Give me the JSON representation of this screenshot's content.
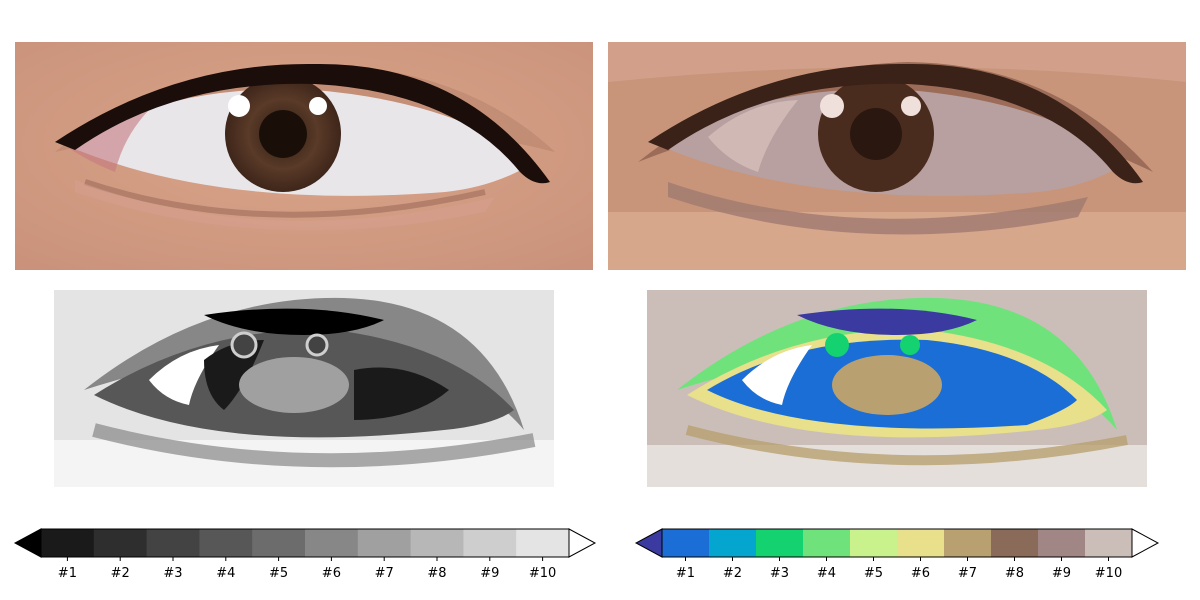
{
  "panels": {
    "original": {
      "icon": "eye-photo-original"
    },
    "quantized": {
      "icon": "eye-photo-quantized"
    },
    "grayscale_segmentation": {
      "icon": "eye-gray-segmentation"
    },
    "color_segmentation": {
      "icon": "eye-color-segmentation"
    }
  },
  "colorbar_gray": {
    "labels": [
      "#1",
      "#2",
      "#3",
      "#4",
      "#5",
      "#6",
      "#7",
      "#8",
      "#9",
      "#10"
    ],
    "colors": [
      "#1a1a1a",
      "#2e2e2e",
      "#434343",
      "#575757",
      "#6c6c6c",
      "#878787",
      "#a0a0a0",
      "#b7b7b7",
      "#cecece",
      "#e4e4e4"
    ],
    "under_color": "#000000",
    "over_color": "#ffffff"
  },
  "colorbar_color": {
    "labels": [
      "#1",
      "#2",
      "#3",
      "#4",
      "#5",
      "#6",
      "#7",
      "#8",
      "#9",
      "#10"
    ],
    "colors": [
      "#1a6ed6",
      "#04a6d0",
      "#14d26f",
      "#70e27b",
      "#c9f28c",
      "#e8e08a",
      "#b8a070",
      "#8a6a58",
      "#a08684",
      "#cbbeb8"
    ],
    "under_color": "#3a3aa0",
    "over_color": "#ffffff"
  }
}
